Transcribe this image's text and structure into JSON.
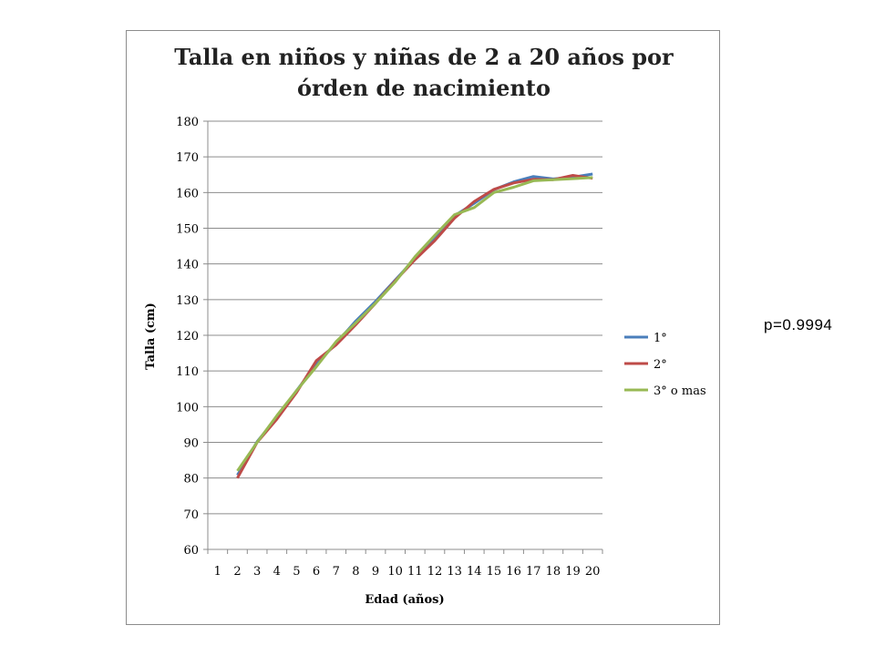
{
  "chart_data": {
    "type": "line",
    "title_lines": [
      "Talla en niños y niñas de 2 a 20 años por",
      "órden de nacimiento"
    ],
    "xlabel": "Edad (años)",
    "ylabel": "Talla (cm)",
    "categories": [
      1,
      2,
      3,
      4,
      5,
      6,
      7,
      8,
      9,
      10,
      11,
      12,
      13,
      14,
      15,
      16,
      17,
      18,
      19,
      20
    ],
    "ylim": [
      60,
      180
    ],
    "ytick_step": 10,
    "grid": true,
    "legend_position": "right",
    "series": [
      {
        "name": "1°",
        "color": "#4a7ebb",
        "values": [
          null,
          80.8,
          90.2,
          97.0,
          104.5,
          111.8,
          117.8,
          124.0,
          129.5,
          135.5,
          141.5,
          147.5,
          153.5,
          157.0,
          160.8,
          163.0,
          164.5,
          163.8,
          164.3,
          165.2
        ]
      },
      {
        "name": "2°",
        "color": "#be4b48",
        "values": [
          null,
          80.0,
          90.0,
          96.5,
          104.0,
          112.9,
          117.3,
          123.0,
          129.0,
          135.3,
          141.2,
          146.5,
          152.8,
          157.5,
          160.9,
          162.7,
          163.7,
          163.6,
          164.8,
          164.0
        ]
      },
      {
        "name": "3° o mas",
        "color": "#98b954",
        "values": [
          null,
          82.0,
          90.0,
          97.5,
          104.5,
          111.2,
          118.2,
          123.5,
          129.0,
          135.0,
          142.0,
          148.0,
          153.8,
          155.8,
          160.0,
          161.5,
          163.3,
          163.6,
          163.9,
          164.2
        ]
      }
    ]
  },
  "annotation": {
    "p_value": "p=0.9994"
  }
}
